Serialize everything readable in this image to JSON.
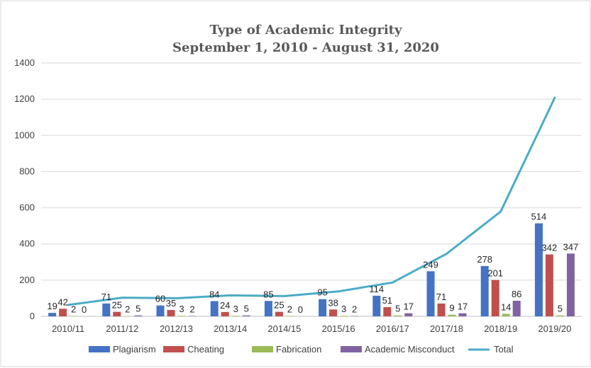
{
  "chart_data": {
    "type": "bar",
    "title": "Type of Academic Integrity",
    "subtitle": "September 1, 2010 - August 31, 2020",
    "categories": [
      "2010/11",
      "2011/12",
      "2012/13",
      "2013/14",
      "2014/15",
      "2015/16",
      "2016/17",
      "2017/18",
      "2018/19",
      "2019/20"
    ],
    "series": [
      {
        "name": "Plagiarism",
        "type": "bar",
        "color": "#4472C4",
        "values": [
          19,
          71,
          60,
          84,
          85,
          95,
          114,
          249,
          278,
          514
        ]
      },
      {
        "name": "Cheating",
        "type": "bar",
        "color": "#C0504D",
        "values": [
          42,
          25,
          35,
          24,
          25,
          38,
          51,
          71,
          201,
          342
        ]
      },
      {
        "name": "Fabrication",
        "type": "bar",
        "color": "#9BBB59",
        "values": [
          2,
          2,
          3,
          3,
          2,
          3,
          5,
          9,
          14,
          5
        ]
      },
      {
        "name": "Academic Misconduct",
        "type": "bar",
        "color": "#8064A2",
        "values": [
          0,
          5,
          2,
          5,
          0,
          2,
          17,
          17,
          86,
          347
        ]
      },
      {
        "name": "Total",
        "type": "line",
        "color": "#4BACC6",
        "values": [
          63,
          103,
          100,
          116,
          112,
          138,
          187,
          346,
          579,
          1208
        ]
      }
    ],
    "ylim": [
      0,
      1400
    ],
    "yticks": [
      0,
      200,
      400,
      600,
      800,
      1000,
      1200,
      1400
    ],
    "xlabel": "",
    "ylabel": "",
    "grid": true,
    "legend": "bottom"
  }
}
